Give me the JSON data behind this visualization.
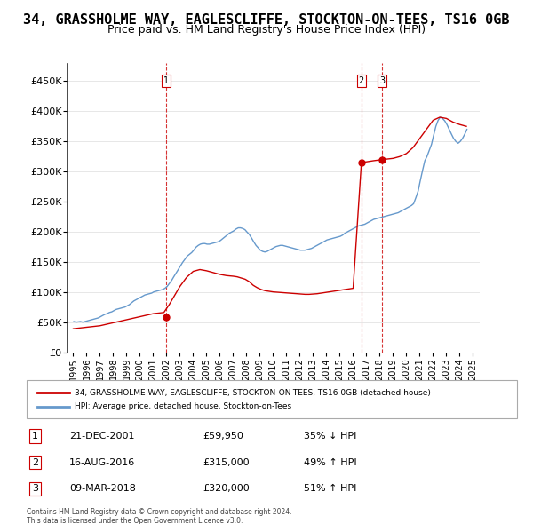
{
  "title": "34, GRASSHOLME WAY, EAGLESCLIFFE, STOCKTON-ON-TEES, TS16 0GB",
  "subtitle": "Price paid vs. HM Land Registry's House Price Index (HPI)",
  "title_fontsize": 11,
  "subtitle_fontsize": 9,
  "ylabel_ticks": [
    "£0",
    "£50K",
    "£100K",
    "£150K",
    "£200K",
    "£250K",
    "£300K",
    "£350K",
    "£400K",
    "£450K"
  ],
  "ytick_vals": [
    0,
    50000,
    100000,
    150000,
    200000,
    250000,
    300000,
    350000,
    400000,
    450000
  ],
  "ylim": [
    0,
    480000
  ],
  "xlim_start": 1994.5,
  "xlim_end": 2025.5,
  "hpi_color": "#6699cc",
  "price_color": "#cc0000",
  "transaction_color": "#cc0000",
  "dashed_color": "#cc0000",
  "transactions": [
    {
      "num": 1,
      "date": "21-DEC-2001",
      "price": 59950,
      "year": 2001.97,
      "label": "21-DEC-2001",
      "pct": "35% ↓ HPI"
    },
    {
      "num": 2,
      "date": "16-AUG-2016",
      "price": 315000,
      "year": 2016.62,
      "label": "16-AUG-2016",
      "pct": "49% ↑ HPI"
    },
    {
      "num": 3,
      "date": "09-MAR-2018",
      "price": 320000,
      "year": 2018.19,
      "label": "09-MAR-2018",
      "pct": "51% ↑ HPI"
    }
  ],
  "legend_property": "34, GRASSHOLME WAY, EAGLESCLIFFE, STOCKTON-ON-TEES, TS16 0GB (detached house)",
  "legend_hpi": "HPI: Average price, detached house, Stockton-on-Tees",
  "footer1": "Contains HM Land Registry data © Crown copyright and database right 2024.",
  "footer2": "This data is licensed under the Open Government Licence v3.0.",
  "table_rows": [
    [
      "1",
      "21-DEC-2001",
      "£59,950",
      "35% ↓ HPI"
    ],
    [
      "2",
      "16-AUG-2016",
      "£315,000",
      "49% ↑ HPI"
    ],
    [
      "3",
      "09-MAR-2018",
      "£320,000",
      "51% ↑ HPI"
    ]
  ],
  "hpi_data": {
    "years": [
      1995.04,
      1995.21,
      1995.38,
      1995.54,
      1995.71,
      1995.88,
      1996.04,
      1996.21,
      1996.38,
      1996.54,
      1996.71,
      1996.88,
      1997.04,
      1997.21,
      1997.38,
      1997.54,
      1997.71,
      1997.88,
      1998.04,
      1998.21,
      1998.38,
      1998.54,
      1998.71,
      1998.88,
      1999.04,
      1999.21,
      1999.38,
      1999.54,
      1999.71,
      1999.88,
      2000.04,
      2000.21,
      2000.38,
      2000.54,
      2000.71,
      2000.88,
      2001.04,
      2001.21,
      2001.38,
      2001.54,
      2001.71,
      2001.88,
      2002.04,
      2002.21,
      2002.38,
      2002.54,
      2002.71,
      2002.88,
      2003.04,
      2003.21,
      2003.38,
      2003.54,
      2003.71,
      2003.88,
      2004.04,
      2004.21,
      2004.38,
      2004.54,
      2004.71,
      2004.88,
      2005.04,
      2005.21,
      2005.38,
      2005.54,
      2005.71,
      2005.88,
      2006.04,
      2006.21,
      2006.38,
      2006.54,
      2006.71,
      2006.88,
      2007.04,
      2007.21,
      2007.38,
      2007.54,
      2007.71,
      2007.88,
      2008.04,
      2008.21,
      2008.38,
      2008.54,
      2008.71,
      2008.88,
      2009.04,
      2009.21,
      2009.38,
      2009.54,
      2009.71,
      2009.88,
      2010.04,
      2010.21,
      2010.38,
      2010.54,
      2010.71,
      2010.88,
      2011.04,
      2011.21,
      2011.38,
      2011.54,
      2011.71,
      2011.88,
      2012.04,
      2012.21,
      2012.38,
      2012.54,
      2012.71,
      2012.88,
      2013.04,
      2013.21,
      2013.38,
      2013.54,
      2013.71,
      2013.88,
      2014.04,
      2014.21,
      2014.38,
      2014.54,
      2014.71,
      2014.88,
      2015.04,
      2015.21,
      2015.38,
      2015.54,
      2015.71,
      2015.88,
      2016.04,
      2016.21,
      2016.38,
      2016.54,
      2016.71,
      2016.88,
      2017.04,
      2017.21,
      2017.38,
      2017.54,
      2017.71,
      2017.88,
      2018.04,
      2018.21,
      2018.38,
      2018.54,
      2018.71,
      2018.88,
      2019.04,
      2019.21,
      2019.38,
      2019.54,
      2019.71,
      2019.88,
      2020.04,
      2020.21,
      2020.38,
      2020.54,
      2020.71,
      2020.88,
      2021.04,
      2021.21,
      2021.38,
      2021.54,
      2021.71,
      2021.88,
      2022.04,
      2022.21,
      2022.38,
      2022.54,
      2022.71,
      2022.88,
      2023.04,
      2023.21,
      2023.38,
      2023.54,
      2023.71,
      2023.88,
      2024.04,
      2024.21,
      2024.38,
      2024.54
    ],
    "values": [
      52000,
      51000,
      51500,
      52000,
      51000,
      52000,
      53000,
      54000,
      55000,
      56000,
      57000,
      58000,
      60000,
      62000,
      64000,
      65000,
      67000,
      68000,
      70000,
      72000,
      73000,
      74000,
      75000,
      76000,
      78000,
      80000,
      83000,
      86000,
      88000,
      90000,
      92000,
      94000,
      96000,
      97000,
      98000,
      99000,
      101000,
      102000,
      103000,
      104000,
      105000,
      107000,
      110000,
      115000,
      120000,
      126000,
      132000,
      138000,
      144000,
      150000,
      155000,
      160000,
      163000,
      166000,
      170000,
      175000,
      178000,
      180000,
      181000,
      181000,
      180000,
      180000,
      181000,
      182000,
      183000,
      184000,
      186000,
      189000,
      192000,
      195000,
      198000,
      200000,
      202000,
      205000,
      207000,
      207000,
      206000,
      204000,
      200000,
      196000,
      190000,
      184000,
      178000,
      174000,
      170000,
      168000,
      167000,
      168000,
      170000,
      172000,
      174000,
      176000,
      177000,
      178000,
      178000,
      177000,
      176000,
      175000,
      174000,
      173000,
      172000,
      171000,
      170000,
      170000,
      170000,
      171000,
      172000,
      173000,
      175000,
      177000,
      179000,
      181000,
      183000,
      185000,
      187000,
      188000,
      189000,
      190000,
      191000,
      192000,
      193000,
      195000,
      198000,
      200000,
      202000,
      204000,
      206000,
      208000,
      210000,
      211000,
      212000,
      213000,
      215000,
      217000,
      219000,
      221000,
      222000,
      223000,
      224000,
      225000,
      226000,
      227000,
      228000,
      229000,
      230000,
      231000,
      232000,
      234000,
      236000,
      238000,
      240000,
      242000,
      244000,
      247000,
      257000,
      268000,
      285000,
      302000,
      318000,
      325000,
      335000,
      345000,
      360000,
      375000,
      385000,
      390000,
      388000,
      384000,
      378000,
      370000,
      362000,
      355000,
      350000,
      347000,
      350000,
      355000,
      362000,
      370000
    ]
  },
  "price_data": {
    "years": [
      1995.0,
      1995.2,
      1995.4,
      1995.6,
      1995.8,
      1996.0,
      1996.2,
      1996.4,
      1996.6,
      1996.8,
      1997.0,
      1997.2,
      1997.4,
      1997.6,
      1997.8,
      1998.0,
      1998.2,
      1998.4,
      1998.6,
      1998.8,
      1999.0,
      1999.2,
      1999.4,
      1999.6,
      1999.8,
      2000.0,
      2000.2,
      2000.4,
      2000.6,
      2000.8,
      2001.0,
      2001.2,
      2001.4,
      2001.6,
      2001.8,
      2002.2,
      2002.6,
      2003.0,
      2003.5,
      2004.0,
      2004.5,
      2005.0,
      2005.5,
      2006.0,
      2006.5,
      2007.0,
      2007.3,
      2007.6,
      2007.9,
      2008.2,
      2008.5,
      2008.8,
      2009.1,
      2009.4,
      2009.7,
      2010.0,
      2010.3,
      2010.6,
      2010.9,
      2011.2,
      2011.5,
      2011.8,
      2012.1,
      2012.4,
      2012.7,
      2013.0,
      2013.3,
      2013.6,
      2013.9,
      2014.2,
      2014.5,
      2014.8,
      2015.1,
      2015.4,
      2015.7,
      2016.0,
      2016.62,
      2017.5,
      2018.19,
      2019.0,
      2019.5,
      2020.0,
      2020.5,
      2021.0,
      2021.5,
      2022.0,
      2022.5,
      2023.0,
      2023.5,
      2024.0,
      2024.5
    ],
    "values": [
      40000,
      40500,
      41000,
      41500,
      42000,
      42500,
      43000,
      43500,
      44000,
      44500,
      45000,
      46000,
      47000,
      48000,
      49000,
      50000,
      51000,
      52000,
      53000,
      54000,
      55000,
      56000,
      57000,
      58000,
      59000,
      60000,
      61000,
      62000,
      63000,
      64000,
      65000,
      65500,
      66000,
      66500,
      67000,
      80000,
      95000,
      110000,
      125000,
      135000,
      138000,
      136000,
      133000,
      130000,
      128000,
      127000,
      126000,
      124000,
      122000,
      118000,
      112000,
      108000,
      105000,
      103000,
      102000,
      101000,
      100500,
      100000,
      99500,
      99000,
      98500,
      98000,
      97500,
      97000,
      97000,
      97500,
      98000,
      99000,
      100000,
      101000,
      102000,
      103000,
      104000,
      105000,
      106000,
      107000,
      315000,
      318000,
      320000,
      322000,
      325000,
      330000,
      340000,
      355000,
      370000,
      385000,
      390000,
      388000,
      382000,
      378000,
      375000
    ]
  }
}
